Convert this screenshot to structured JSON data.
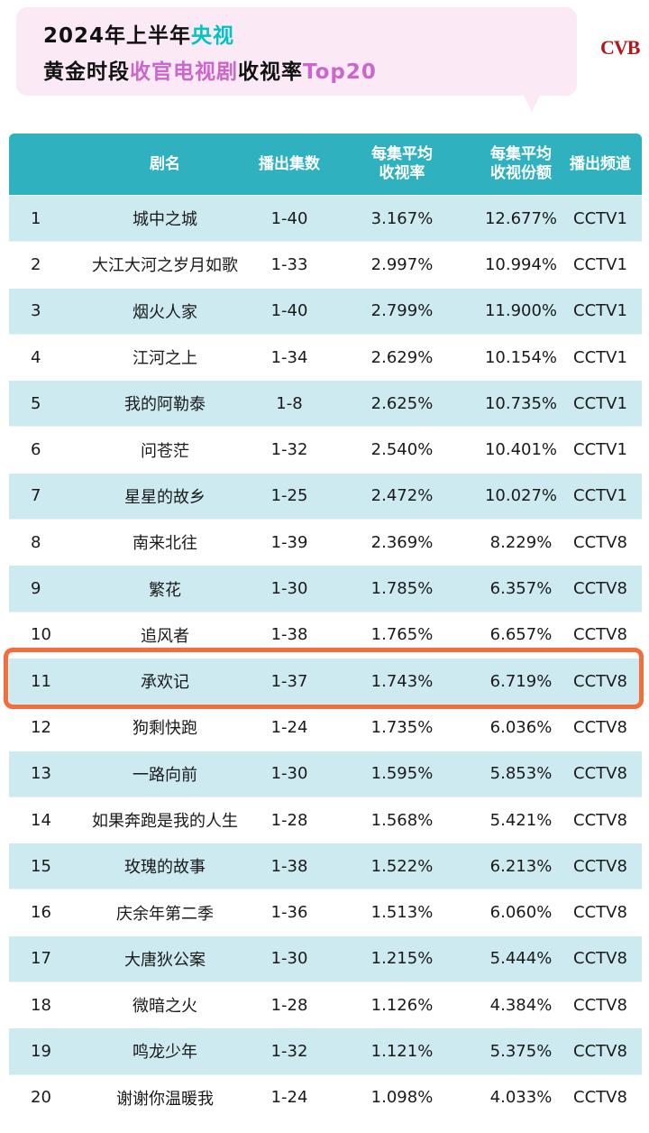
{
  "title": {
    "line1_prefix": "2024年上半年",
    "line1_highlight": "央视",
    "line2_prefix": "黄金时段",
    "line2_highlight": "收官电视剧",
    "line2_mid": "收视率",
    "line2_suffix": "Top20"
  },
  "brand": "CVB",
  "colors": {
    "header": "#2fb1bf",
    "row_alt": "#cdeaf0",
    "highlight_border": "#f46e3c",
    "title_bg": "#fbe9f5"
  },
  "chart_data": {
    "type": "table",
    "columns": [
      "",
      "剧名",
      "播出集数",
      "每集平均收视率",
      "每集平均收视份额",
      "播出频道"
    ],
    "header_lines": {
      "rank": "",
      "name": "剧名",
      "episodes": "播出集数",
      "rate_1": "每集平均",
      "rate_2": "收视率",
      "share_1": "每集平均",
      "share_2": "收视份额",
      "channel": "播出频道"
    },
    "highlighted_rank": "11",
    "rows": [
      {
        "rank": "1",
        "name": "城中之城",
        "episodes": "1-40",
        "rate": "3.167%",
        "share": "12.677%",
        "channel": "CCTV1"
      },
      {
        "rank": "2",
        "name": "大江大河之岁月如歌",
        "episodes": "1-33",
        "rate": "2.997%",
        "share": "10.994%",
        "channel": "CCTV1"
      },
      {
        "rank": "3",
        "name": "烟火人家",
        "episodes": "1-40",
        "rate": "2.799%",
        "share": "11.900%",
        "channel": "CCTV1"
      },
      {
        "rank": "4",
        "name": "江河之上",
        "episodes": "1-34",
        "rate": "2.629%",
        "share": "10.154%",
        "channel": "CCTV1"
      },
      {
        "rank": "5",
        "name": "我的阿勒泰",
        "episodes": "1-8",
        "rate": "2.625%",
        "share": "10.735%",
        "channel": "CCTV1"
      },
      {
        "rank": "6",
        "name": "问苍茫",
        "episodes": "1-32",
        "rate": "2.540%",
        "share": "10.401%",
        "channel": "CCTV1"
      },
      {
        "rank": "7",
        "name": "星星的故乡",
        "episodes": "1-25",
        "rate": "2.472%",
        "share": "10.027%",
        "channel": "CCTV1"
      },
      {
        "rank": "8",
        "name": "南来北往",
        "episodes": "1-39",
        "rate": "2.369%",
        "share": "8.229%",
        "channel": "CCTV8"
      },
      {
        "rank": "9",
        "name": "繁花",
        "episodes": "1-30",
        "rate": "1.785%",
        "share": "6.357%",
        "channel": "CCTV8"
      },
      {
        "rank": "10",
        "name": "追风者",
        "episodes": "1-38",
        "rate": "1.765%",
        "share": "6.657%",
        "channel": "CCTV8"
      },
      {
        "rank": "11",
        "name": "承欢记",
        "episodes": "1-37",
        "rate": "1.743%",
        "share": "6.719%",
        "channel": "CCTV8"
      },
      {
        "rank": "12",
        "name": "狗剩快跑",
        "episodes": "1-24",
        "rate": "1.735%",
        "share": "6.036%",
        "channel": "CCTV8"
      },
      {
        "rank": "13",
        "name": "一路向前",
        "episodes": "1-30",
        "rate": "1.595%",
        "share": "5.853%",
        "channel": "CCTV8"
      },
      {
        "rank": "14",
        "name": "如果奔跑是我的人生",
        "episodes": "1-28",
        "rate": "1.568%",
        "share": "5.421%",
        "channel": "CCTV8"
      },
      {
        "rank": "15",
        "name": "玫瑰的故事",
        "episodes": "1-38",
        "rate": "1.522%",
        "share": "6.213%",
        "channel": "CCTV8"
      },
      {
        "rank": "16",
        "name": "庆余年第二季",
        "episodes": "1-36",
        "rate": "1.513%",
        "share": "6.060%",
        "channel": "CCTV8"
      },
      {
        "rank": "17",
        "name": "大唐狄公案",
        "episodes": "1-30",
        "rate": "1.215%",
        "share": "5.444%",
        "channel": "CCTV8"
      },
      {
        "rank": "18",
        "name": "微暗之火",
        "episodes": "1-28",
        "rate": "1.126%",
        "share": "4.384%",
        "channel": "CCTV8"
      },
      {
        "rank": "19",
        "name": "鸣龙少年",
        "episodes": "1-32",
        "rate": "1.121%",
        "share": "5.375%",
        "channel": "CCTV8"
      },
      {
        "rank": "20",
        "name": "谢谢你温暖我",
        "episodes": "1-24",
        "rate": "1.098%",
        "share": "4.033%",
        "channel": "CCTV8"
      }
    ]
  }
}
